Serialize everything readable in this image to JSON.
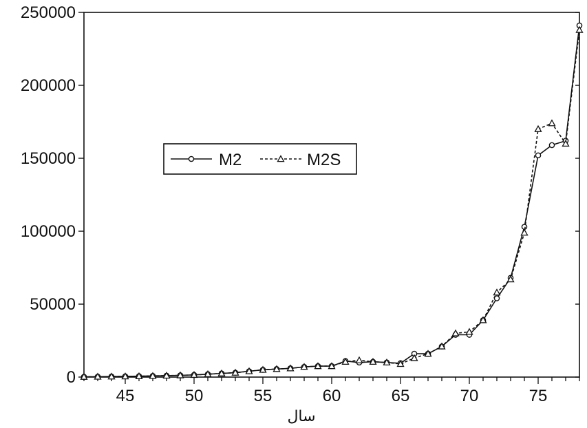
{
  "chart_data": {
    "type": "line",
    "xlabel": "سال",
    "ylabel": "",
    "title": "",
    "xlim": [
      42,
      78
    ],
    "ylim": [
      0,
      250000
    ],
    "x_ticks": [
      45,
      50,
      55,
      60,
      65,
      70,
      75
    ],
    "y_ticks": [
      0,
      50000,
      100000,
      150000,
      200000,
      250000
    ],
    "y_tick_labels": [
      "0",
      "50000",
      "100000",
      "150000",
      "200000",
      "250000"
    ],
    "x_tick_labels": [
      "45",
      "50",
      "55",
      "60",
      "65",
      "70",
      "75"
    ],
    "grid": false,
    "legend_position": "center-left",
    "x": [
      42,
      43,
      44,
      45,
      46,
      47,
      48,
      49,
      50,
      51,
      52,
      53,
      54,
      55,
      56,
      57,
      58,
      59,
      60,
      61,
      62,
      63,
      64,
      65,
      66,
      67,
      68,
      69,
      70,
      71,
      72,
      73,
      74,
      75,
      76,
      77,
      78
    ],
    "series": [
      {
        "name": "M2",
        "style": "solid",
        "marker": "circle",
        "values": [
          200,
          300,
          400,
          500,
          600,
          800,
          1000,
          1200,
          1500,
          2000,
          2500,
          3000,
          4000,
          5000,
          5500,
          6000,
          7000,
          7500,
          7500,
          11000,
          10000,
          10500,
          10000,
          9500,
          16000,
          16000,
          21000,
          29000,
          29000,
          39000,
          54000,
          68000,
          103000,
          152000,
          159000,
          162000,
          241000
        ]
      },
      {
        "name": "M2S",
        "style": "dashed",
        "marker": "triangle",
        "values": [
          200,
          300,
          400,
          500,
          600,
          800,
          1000,
          1200,
          1500,
          2000,
          2500,
          3000,
          4000,
          5000,
          5500,
          6000,
          7000,
          7500,
          7500,
          10500,
          11500,
          10500,
          10000,
          9000,
          13000,
          16000,
          21000,
          30000,
          31000,
          39000,
          58000,
          67000,
          99000,
          170000,
          174000,
          160000,
          238000
        ]
      }
    ]
  }
}
